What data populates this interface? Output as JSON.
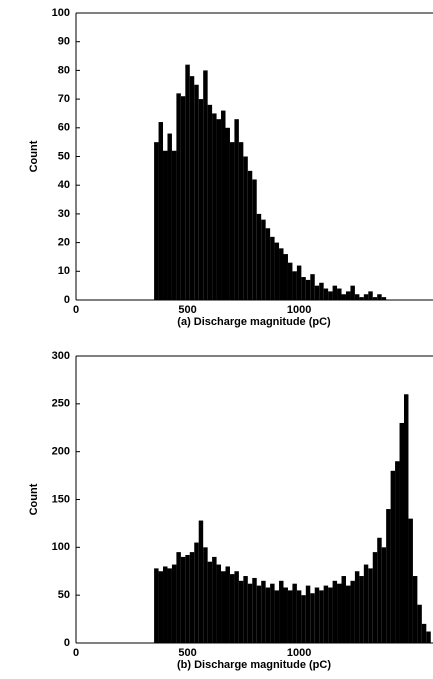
{
  "chart_data": [
    {
      "type": "histogram",
      "xlabel": "(a)  Discharge magnitude (pC)",
      "ylabel": "Count",
      "color": "#000000",
      "bins": [
        350,
        370,
        390,
        410,
        430,
        450,
        470,
        490,
        510,
        530,
        550,
        570,
        590,
        610,
        630,
        650,
        670,
        690,
        710,
        730,
        750,
        770,
        790,
        810,
        830,
        850,
        870,
        890,
        910,
        930,
        950,
        970,
        990,
        1010,
        1030,
        1050,
        1070,
        1090,
        1110,
        1130,
        1150,
        1170,
        1190,
        1210,
        1230,
        1250,
        1270,
        1290,
        1310,
        1330,
        1350,
        1370,
        1390,
        1410
      ],
      "counts": [
        55,
        62,
        52,
        58,
        52,
        72,
        71,
        82,
        78,
        75,
        70,
        80,
        68,
        65,
        63,
        66,
        60,
        55,
        63,
        55,
        50,
        45,
        42,
        30,
        28,
        25,
        22,
        20,
        18,
        16,
        13,
        10,
        12,
        8,
        7,
        9,
        5,
        6,
        4,
        3,
        5,
        4,
        2,
        3,
        5,
        2,
        1,
        2,
        3,
        1,
        2,
        1,
        0
      ],
      "xlim": [
        0,
        1600
      ],
      "ylim": [
        0,
        100
      ],
      "xticks": [
        0,
        500,
        1000
      ],
      "yticks": [
        0,
        10,
        20,
        30,
        40,
        50,
        60,
        70,
        80,
        90,
        100
      ]
    },
    {
      "type": "histogram",
      "xlabel": "(b)  Discharge magnitude (pC)",
      "ylabel": "Count",
      "color": "#000000",
      "bins": [
        350,
        370,
        390,
        410,
        430,
        450,
        470,
        490,
        510,
        530,
        550,
        570,
        590,
        610,
        630,
        650,
        670,
        690,
        710,
        730,
        750,
        770,
        790,
        810,
        830,
        850,
        870,
        890,
        910,
        930,
        950,
        970,
        990,
        1010,
        1030,
        1050,
        1070,
        1090,
        1110,
        1130,
        1150,
        1170,
        1190,
        1210,
        1230,
        1250,
        1270,
        1290,
        1310,
        1330,
        1350,
        1370,
        1390,
        1410,
        1430,
        1450,
        1470,
        1490,
        1510,
        1530,
        1550,
        1570,
        1590
      ],
      "counts": [
        78,
        75,
        80,
        78,
        82,
        95,
        90,
        92,
        95,
        105,
        128,
        100,
        85,
        90,
        82,
        75,
        80,
        72,
        75,
        65,
        70,
        62,
        68,
        60,
        65,
        58,
        62,
        55,
        65,
        58,
        55,
        62,
        55,
        50,
        60,
        52,
        58,
        55,
        60,
        58,
        65,
        62,
        70,
        60,
        65,
        75,
        70,
        82,
        78,
        95,
        110,
        100,
        140,
        180,
        190,
        230,
        260,
        130,
        70,
        40,
        20,
        12
      ],
      "xlim": [
        0,
        1600
      ],
      "ylim": [
        0,
        300
      ],
      "xticks": [
        0,
        500,
        1000
      ],
      "yticks": [
        0,
        50,
        100,
        150,
        200,
        250,
        300
      ]
    }
  ]
}
